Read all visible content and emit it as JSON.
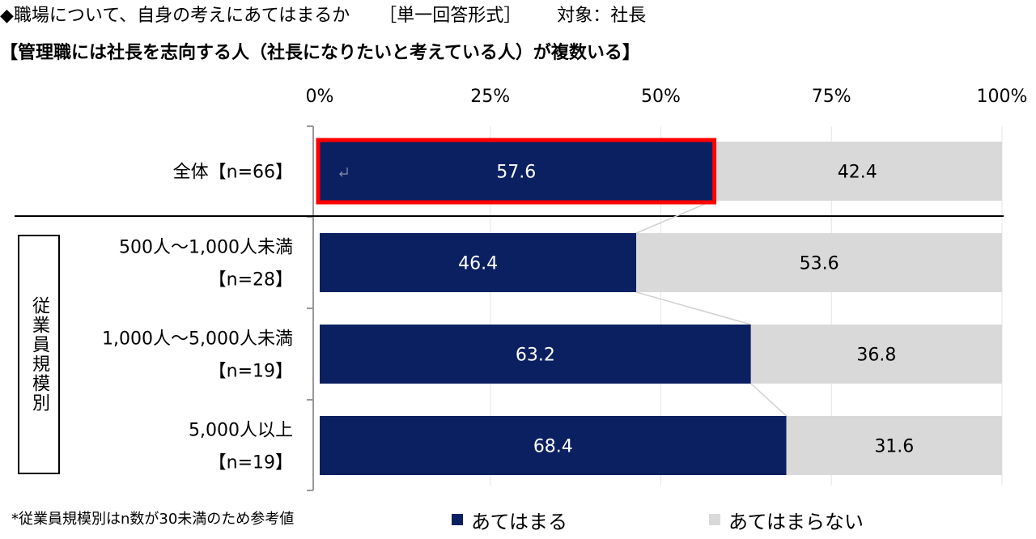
{
  "header": {
    "line1_part1": "◆職場について、自身の考えにあてはまるか",
    "line1_part2": "［単一回答形式］",
    "line1_part3": "対象：社長",
    "line2": "【管理職には社長を志向する人（社長になりたいと考えている人）が複数いる】"
  },
  "segment_label": "従業員規模別",
  "footnote": "*従業員規模別はn数が30未満のため参考値",
  "colors": {
    "applies": "#0b2060",
    "not_applies": "#d9d9d9",
    "highlight": "#ff0000"
  },
  "chart_data": {
    "type": "bar",
    "orientation": "horizontal",
    "stacked": true,
    "percent": true,
    "xlim": [
      0,
      100
    ],
    "x_ticks": [
      "0%",
      "25%",
      "50%",
      "75%",
      "100%"
    ],
    "categories": [
      {
        "lines": [
          "全体【n=66】"
        ]
      },
      {
        "lines": [
          "500人～1,000人未満",
          "【n=28】"
        ]
      },
      {
        "lines": [
          "1,000人～5,000人未満",
          "【n=19】"
        ]
      },
      {
        "lines": [
          "5,000人以上",
          "【n=19】"
        ]
      }
    ],
    "series": [
      {
        "name": "あてはまる",
        "values": [
          57.6,
          46.4,
          63.2,
          68.4
        ]
      },
      {
        "name": "あてはまらない",
        "values": [
          42.4,
          53.6,
          36.8,
          31.6
        ]
      }
    ],
    "highlighted_bar": {
      "category_index": 0,
      "series_index": 0
    },
    "legend_position": "bottom"
  }
}
